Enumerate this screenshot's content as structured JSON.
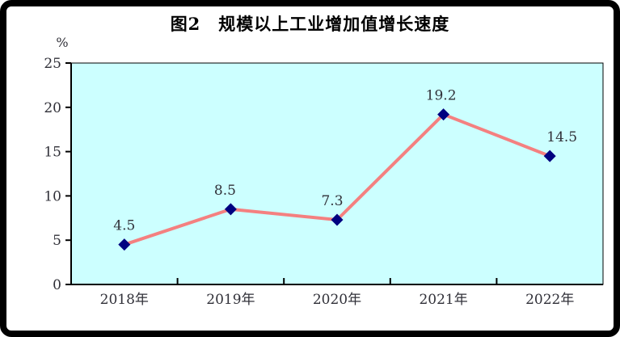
{
  "title": "图2　规模以上工业增加值增长速度",
  "chart_data": {
    "type": "line",
    "title": "图2　规模以上工业增加值增长速度",
    "categories": [
      "2018年",
      "2019年",
      "2020年",
      "2021年",
      "2022年"
    ],
    "values": [
      4.5,
      8.5,
      7.3,
      19.2,
      14.5
    ],
    "data_labels": [
      "4.5",
      "8.5",
      "7.3",
      "19.2",
      "14.5"
    ],
    "unit_label": "%",
    "y_ticks": [
      0,
      5,
      10,
      15,
      20,
      25
    ],
    "ylim": [
      0,
      25
    ],
    "grid": false,
    "legend": "none",
    "marker_shape": "diamond",
    "colors": {
      "plot_background": "#CCFFFF",
      "line": "#F48080",
      "marker": "#000080",
      "axis": "#000000",
      "tick_text": "#303038",
      "data_label_text": "#303038",
      "frame_border": "#000000"
    },
    "label_offsets_x": [
      0,
      -7,
      -6,
      -3,
      15
    ],
    "label_offset_y": -18
  }
}
